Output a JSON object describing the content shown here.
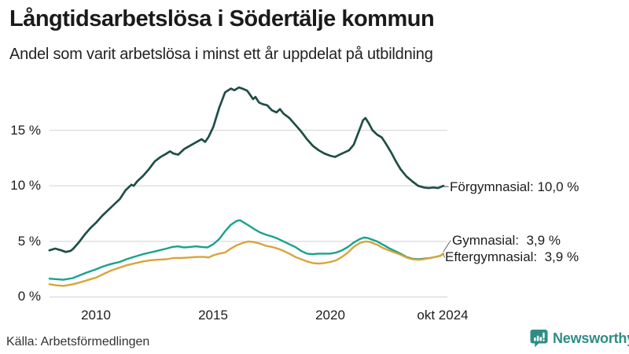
{
  "header": {
    "title": "Långtidsarbetslösa i Södertälje kommun",
    "subtitle": "Andel som varit arbetslösa i minst ett år uppdelat på utbildning"
  },
  "footer": {
    "source": "Källa: Arbetsförmedlingen",
    "brand": "Newsworthy",
    "logo_icon": "bar-chart-speech-bubble-icon"
  },
  "colors": {
    "forgymnasial": "#1f4e46",
    "gymnasial": "#18a28b",
    "eftergymnasial": "#d9a43c",
    "grid": "#dedede",
    "connector": "#666666",
    "brand_teal": "#2f8c85"
  },
  "chart_data": {
    "type": "line",
    "title": "Långtidsarbetslösa i Södertälje kommun",
    "subtitle": "Andel som varit arbetslösa i minst ett år uppdelat på utbildning",
    "x_axis": {
      "range_years": [
        2008,
        2025
      ],
      "ticks": [
        {
          "year": 2010,
          "label": "2010"
        },
        {
          "year": 2015,
          "label": "2015"
        },
        {
          "year": 2020,
          "label": "2020"
        },
        {
          "year": 2024.79,
          "label": "okt 2024"
        }
      ]
    },
    "y_axis": {
      "range": [
        0,
        19.5
      ],
      "unit": "%",
      "grid": true,
      "ticks": [
        {
          "value": 0,
          "label": "0 %"
        },
        {
          "value": 5,
          "label": "5 %"
        },
        {
          "value": 10,
          "label": "10 %"
        },
        {
          "value": 15,
          "label": "15 %"
        }
      ]
    },
    "legend_position": "end-of-line-labels",
    "series": [
      {
        "name": "Förgymnasial",
        "color": "#1f4e46",
        "end_value": "10,0 %",
        "end_label": "Förgymnasial: 10,0 %",
        "points": [
          [
            2008.0,
            4.2
          ],
          [
            2008.25,
            4.35
          ],
          [
            2008.5,
            4.2
          ],
          [
            2008.7,
            4.05
          ],
          [
            2008.9,
            4.15
          ],
          [
            2009.0,
            4.3
          ],
          [
            2009.25,
            4.9
          ],
          [
            2009.5,
            5.6
          ],
          [
            2009.75,
            6.2
          ],
          [
            2010.0,
            6.7
          ],
          [
            2010.25,
            7.3
          ],
          [
            2010.5,
            7.8
          ],
          [
            2010.75,
            8.3
          ],
          [
            2011.0,
            8.8
          ],
          [
            2011.25,
            9.6
          ],
          [
            2011.5,
            10.1
          ],
          [
            2011.6,
            10.0
          ],
          [
            2011.75,
            10.4
          ],
          [
            2012.0,
            10.9
          ],
          [
            2012.25,
            11.5
          ],
          [
            2012.5,
            12.2
          ],
          [
            2012.75,
            12.6
          ],
          [
            2013.0,
            12.9
          ],
          [
            2013.15,
            13.1
          ],
          [
            2013.3,
            12.9
          ],
          [
            2013.5,
            12.8
          ],
          [
            2013.75,
            13.3
          ],
          [
            2014.0,
            13.6
          ],
          [
            2014.25,
            13.9
          ],
          [
            2014.5,
            14.2
          ],
          [
            2014.65,
            13.95
          ],
          [
            2014.8,
            14.4
          ],
          [
            2015.0,
            15.3
          ],
          [
            2015.25,
            17.0
          ],
          [
            2015.5,
            18.4
          ],
          [
            2015.75,
            18.75
          ],
          [
            2015.9,
            18.6
          ],
          [
            2016.1,
            18.85
          ],
          [
            2016.3,
            18.7
          ],
          [
            2016.45,
            18.55
          ],
          [
            2016.6,
            18.1
          ],
          [
            2016.7,
            17.8
          ],
          [
            2016.8,
            18.0
          ],
          [
            2016.95,
            17.5
          ],
          [
            2017.1,
            17.35
          ],
          [
            2017.3,
            17.25
          ],
          [
            2017.5,
            16.8
          ],
          [
            2017.7,
            16.6
          ],
          [
            2017.85,
            16.9
          ],
          [
            2018.0,
            16.5
          ],
          [
            2018.25,
            16.1
          ],
          [
            2018.5,
            15.5
          ],
          [
            2018.75,
            14.9
          ],
          [
            2019.0,
            14.2
          ],
          [
            2019.25,
            13.6
          ],
          [
            2019.5,
            13.2
          ],
          [
            2019.75,
            12.9
          ],
          [
            2020.0,
            12.7
          ],
          [
            2020.2,
            12.6
          ],
          [
            2020.4,
            12.8
          ],
          [
            2020.6,
            13.0
          ],
          [
            2020.8,
            13.2
          ],
          [
            2021.0,
            13.7
          ],
          [
            2021.2,
            14.8
          ],
          [
            2021.4,
            15.9
          ],
          [
            2021.5,
            16.1
          ],
          [
            2021.65,
            15.6
          ],
          [
            2021.8,
            15.0
          ],
          [
            2022.0,
            14.6
          ],
          [
            2022.2,
            14.35
          ],
          [
            2022.4,
            13.7
          ],
          [
            2022.6,
            13.0
          ],
          [
            2022.8,
            12.2
          ],
          [
            2023.0,
            11.5
          ],
          [
            2023.25,
            10.85
          ],
          [
            2023.5,
            10.4
          ],
          [
            2023.75,
            10.0
          ],
          [
            2024.0,
            9.85
          ],
          [
            2024.2,
            9.8
          ],
          [
            2024.4,
            9.85
          ],
          [
            2024.6,
            9.8
          ],
          [
            2024.83,
            10.0
          ]
        ]
      },
      {
        "name": "Gymnasial",
        "color": "#18a28b",
        "end_value": "3,9 %",
        "end_label": "Gymnasial:  3,9 %",
        "points": [
          [
            2008.0,
            1.65
          ],
          [
            2008.3,
            1.6
          ],
          [
            2008.6,
            1.55
          ],
          [
            2009.0,
            1.7
          ],
          [
            2009.3,
            1.95
          ],
          [
            2009.6,
            2.2
          ],
          [
            2010.0,
            2.5
          ],
          [
            2010.3,
            2.75
          ],
          [
            2010.6,
            2.95
          ],
          [
            2011.0,
            3.15
          ],
          [
            2011.3,
            3.4
          ],
          [
            2011.6,
            3.6
          ],
          [
            2012.0,
            3.85
          ],
          [
            2012.3,
            4.0
          ],
          [
            2012.6,
            4.15
          ],
          [
            2013.0,
            4.35
          ],
          [
            2013.25,
            4.5
          ],
          [
            2013.5,
            4.55
          ],
          [
            2013.75,
            4.45
          ],
          [
            2014.0,
            4.5
          ],
          [
            2014.25,
            4.55
          ],
          [
            2014.5,
            4.5
          ],
          [
            2014.75,
            4.45
          ],
          [
            2015.0,
            4.75
          ],
          [
            2015.25,
            5.2
          ],
          [
            2015.5,
            5.9
          ],
          [
            2015.75,
            6.5
          ],
          [
            2016.0,
            6.85
          ],
          [
            2016.15,
            6.9
          ],
          [
            2016.3,
            6.7
          ],
          [
            2016.5,
            6.45
          ],
          [
            2016.75,
            6.1
          ],
          [
            2017.0,
            5.8
          ],
          [
            2017.25,
            5.6
          ],
          [
            2017.5,
            5.45
          ],
          [
            2017.75,
            5.25
          ],
          [
            2018.0,
            5.0
          ],
          [
            2018.25,
            4.75
          ],
          [
            2018.5,
            4.5
          ],
          [
            2018.75,
            4.15
          ],
          [
            2019.0,
            3.9
          ],
          [
            2019.25,
            3.85
          ],
          [
            2019.5,
            3.9
          ],
          [
            2019.75,
            3.9
          ],
          [
            2020.0,
            3.9
          ],
          [
            2020.25,
            4.0
          ],
          [
            2020.5,
            4.2
          ],
          [
            2020.75,
            4.5
          ],
          [
            2021.0,
            4.9
          ],
          [
            2021.25,
            5.2
          ],
          [
            2021.45,
            5.35
          ],
          [
            2021.6,
            5.3
          ],
          [
            2021.8,
            5.15
          ],
          [
            2022.0,
            5.0
          ],
          [
            2022.25,
            4.7
          ],
          [
            2022.5,
            4.4
          ],
          [
            2022.75,
            4.15
          ],
          [
            2023.0,
            3.9
          ],
          [
            2023.25,
            3.6
          ],
          [
            2023.5,
            3.45
          ],
          [
            2023.75,
            3.4
          ],
          [
            2024.0,
            3.45
          ],
          [
            2024.25,
            3.5
          ],
          [
            2024.5,
            3.6
          ],
          [
            2024.7,
            3.7
          ],
          [
            2024.83,
            3.9
          ]
        ]
      },
      {
        "name": "Eftergymnasial",
        "color": "#d9a43c",
        "end_value": "3,9 %",
        "end_label": "Eftergymnasial:  3,9 %",
        "points": [
          [
            2008.0,
            1.15
          ],
          [
            2008.3,
            1.05
          ],
          [
            2008.6,
            1.0
          ],
          [
            2009.0,
            1.15
          ],
          [
            2009.3,
            1.3
          ],
          [
            2009.6,
            1.5
          ],
          [
            2010.0,
            1.75
          ],
          [
            2010.3,
            2.05
          ],
          [
            2010.6,
            2.35
          ],
          [
            2011.0,
            2.65
          ],
          [
            2011.3,
            2.85
          ],
          [
            2011.6,
            3.0
          ],
          [
            2012.0,
            3.2
          ],
          [
            2012.3,
            3.3
          ],
          [
            2012.6,
            3.35
          ],
          [
            2013.0,
            3.4
          ],
          [
            2013.3,
            3.5
          ],
          [
            2013.6,
            3.5
          ],
          [
            2014.0,
            3.55
          ],
          [
            2014.3,
            3.6
          ],
          [
            2014.6,
            3.6
          ],
          [
            2014.8,
            3.55
          ],
          [
            2015.0,
            3.75
          ],
          [
            2015.25,
            3.9
          ],
          [
            2015.5,
            4.0
          ],
          [
            2015.75,
            4.35
          ],
          [
            2016.0,
            4.65
          ],
          [
            2016.25,
            4.85
          ],
          [
            2016.5,
            5.0
          ],
          [
            2016.7,
            4.95
          ],
          [
            2017.0,
            4.8
          ],
          [
            2017.25,
            4.6
          ],
          [
            2017.5,
            4.5
          ],
          [
            2017.75,
            4.35
          ],
          [
            2018.0,
            4.15
          ],
          [
            2018.25,
            3.9
          ],
          [
            2018.5,
            3.6
          ],
          [
            2018.75,
            3.4
          ],
          [
            2019.0,
            3.2
          ],
          [
            2019.25,
            3.05
          ],
          [
            2019.5,
            3.0
          ],
          [
            2019.75,
            3.05
          ],
          [
            2020.0,
            3.15
          ],
          [
            2020.25,
            3.3
          ],
          [
            2020.5,
            3.6
          ],
          [
            2020.75,
            4.0
          ],
          [
            2021.0,
            4.5
          ],
          [
            2021.25,
            4.85
          ],
          [
            2021.5,
            5.0
          ],
          [
            2021.7,
            4.95
          ],
          [
            2022.0,
            4.7
          ],
          [
            2022.25,
            4.4
          ],
          [
            2022.5,
            4.2
          ],
          [
            2022.75,
            4.0
          ],
          [
            2023.0,
            3.8
          ],
          [
            2023.25,
            3.55
          ],
          [
            2023.5,
            3.4
          ],
          [
            2023.75,
            3.35
          ],
          [
            2024.0,
            3.4
          ],
          [
            2024.25,
            3.5
          ],
          [
            2024.5,
            3.6
          ],
          [
            2024.7,
            3.7
          ],
          [
            2024.83,
            3.9
          ]
        ]
      }
    ]
  }
}
